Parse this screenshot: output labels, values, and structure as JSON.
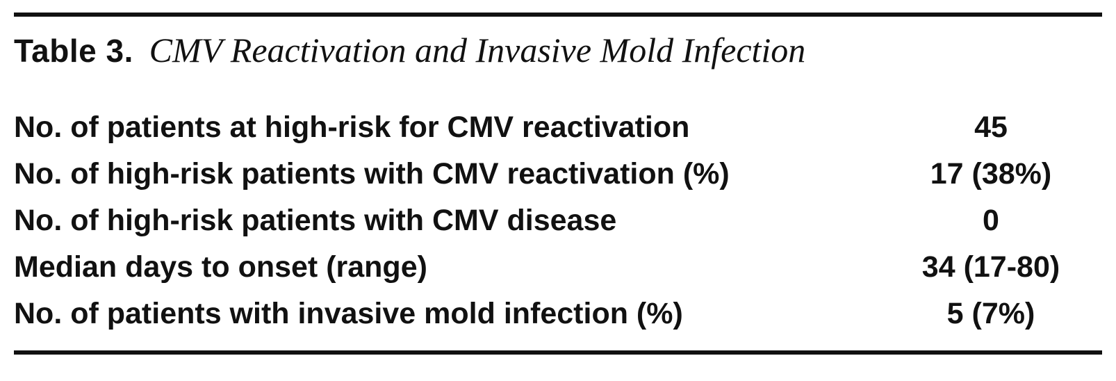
{
  "table": {
    "caption_label": "Table 3.",
    "caption_title": "CMV Reactivation and Invasive Mold Infection",
    "rows": [
      {
        "label": "No. of patients at high-risk for CMV reactivation",
        "value": "45"
      },
      {
        "label": "No. of high-risk patients with CMV reactivation (%)",
        "value": "17 (38%)"
      },
      {
        "label": "No. of high-risk patients with CMV disease",
        "value": "0"
      },
      {
        "label": "Median days to onset (range)",
        "value": "34 (17-80)"
      },
      {
        "label": "No. of patients with invasive mold infection (%)",
        "value": "5 (7%)"
      }
    ]
  }
}
